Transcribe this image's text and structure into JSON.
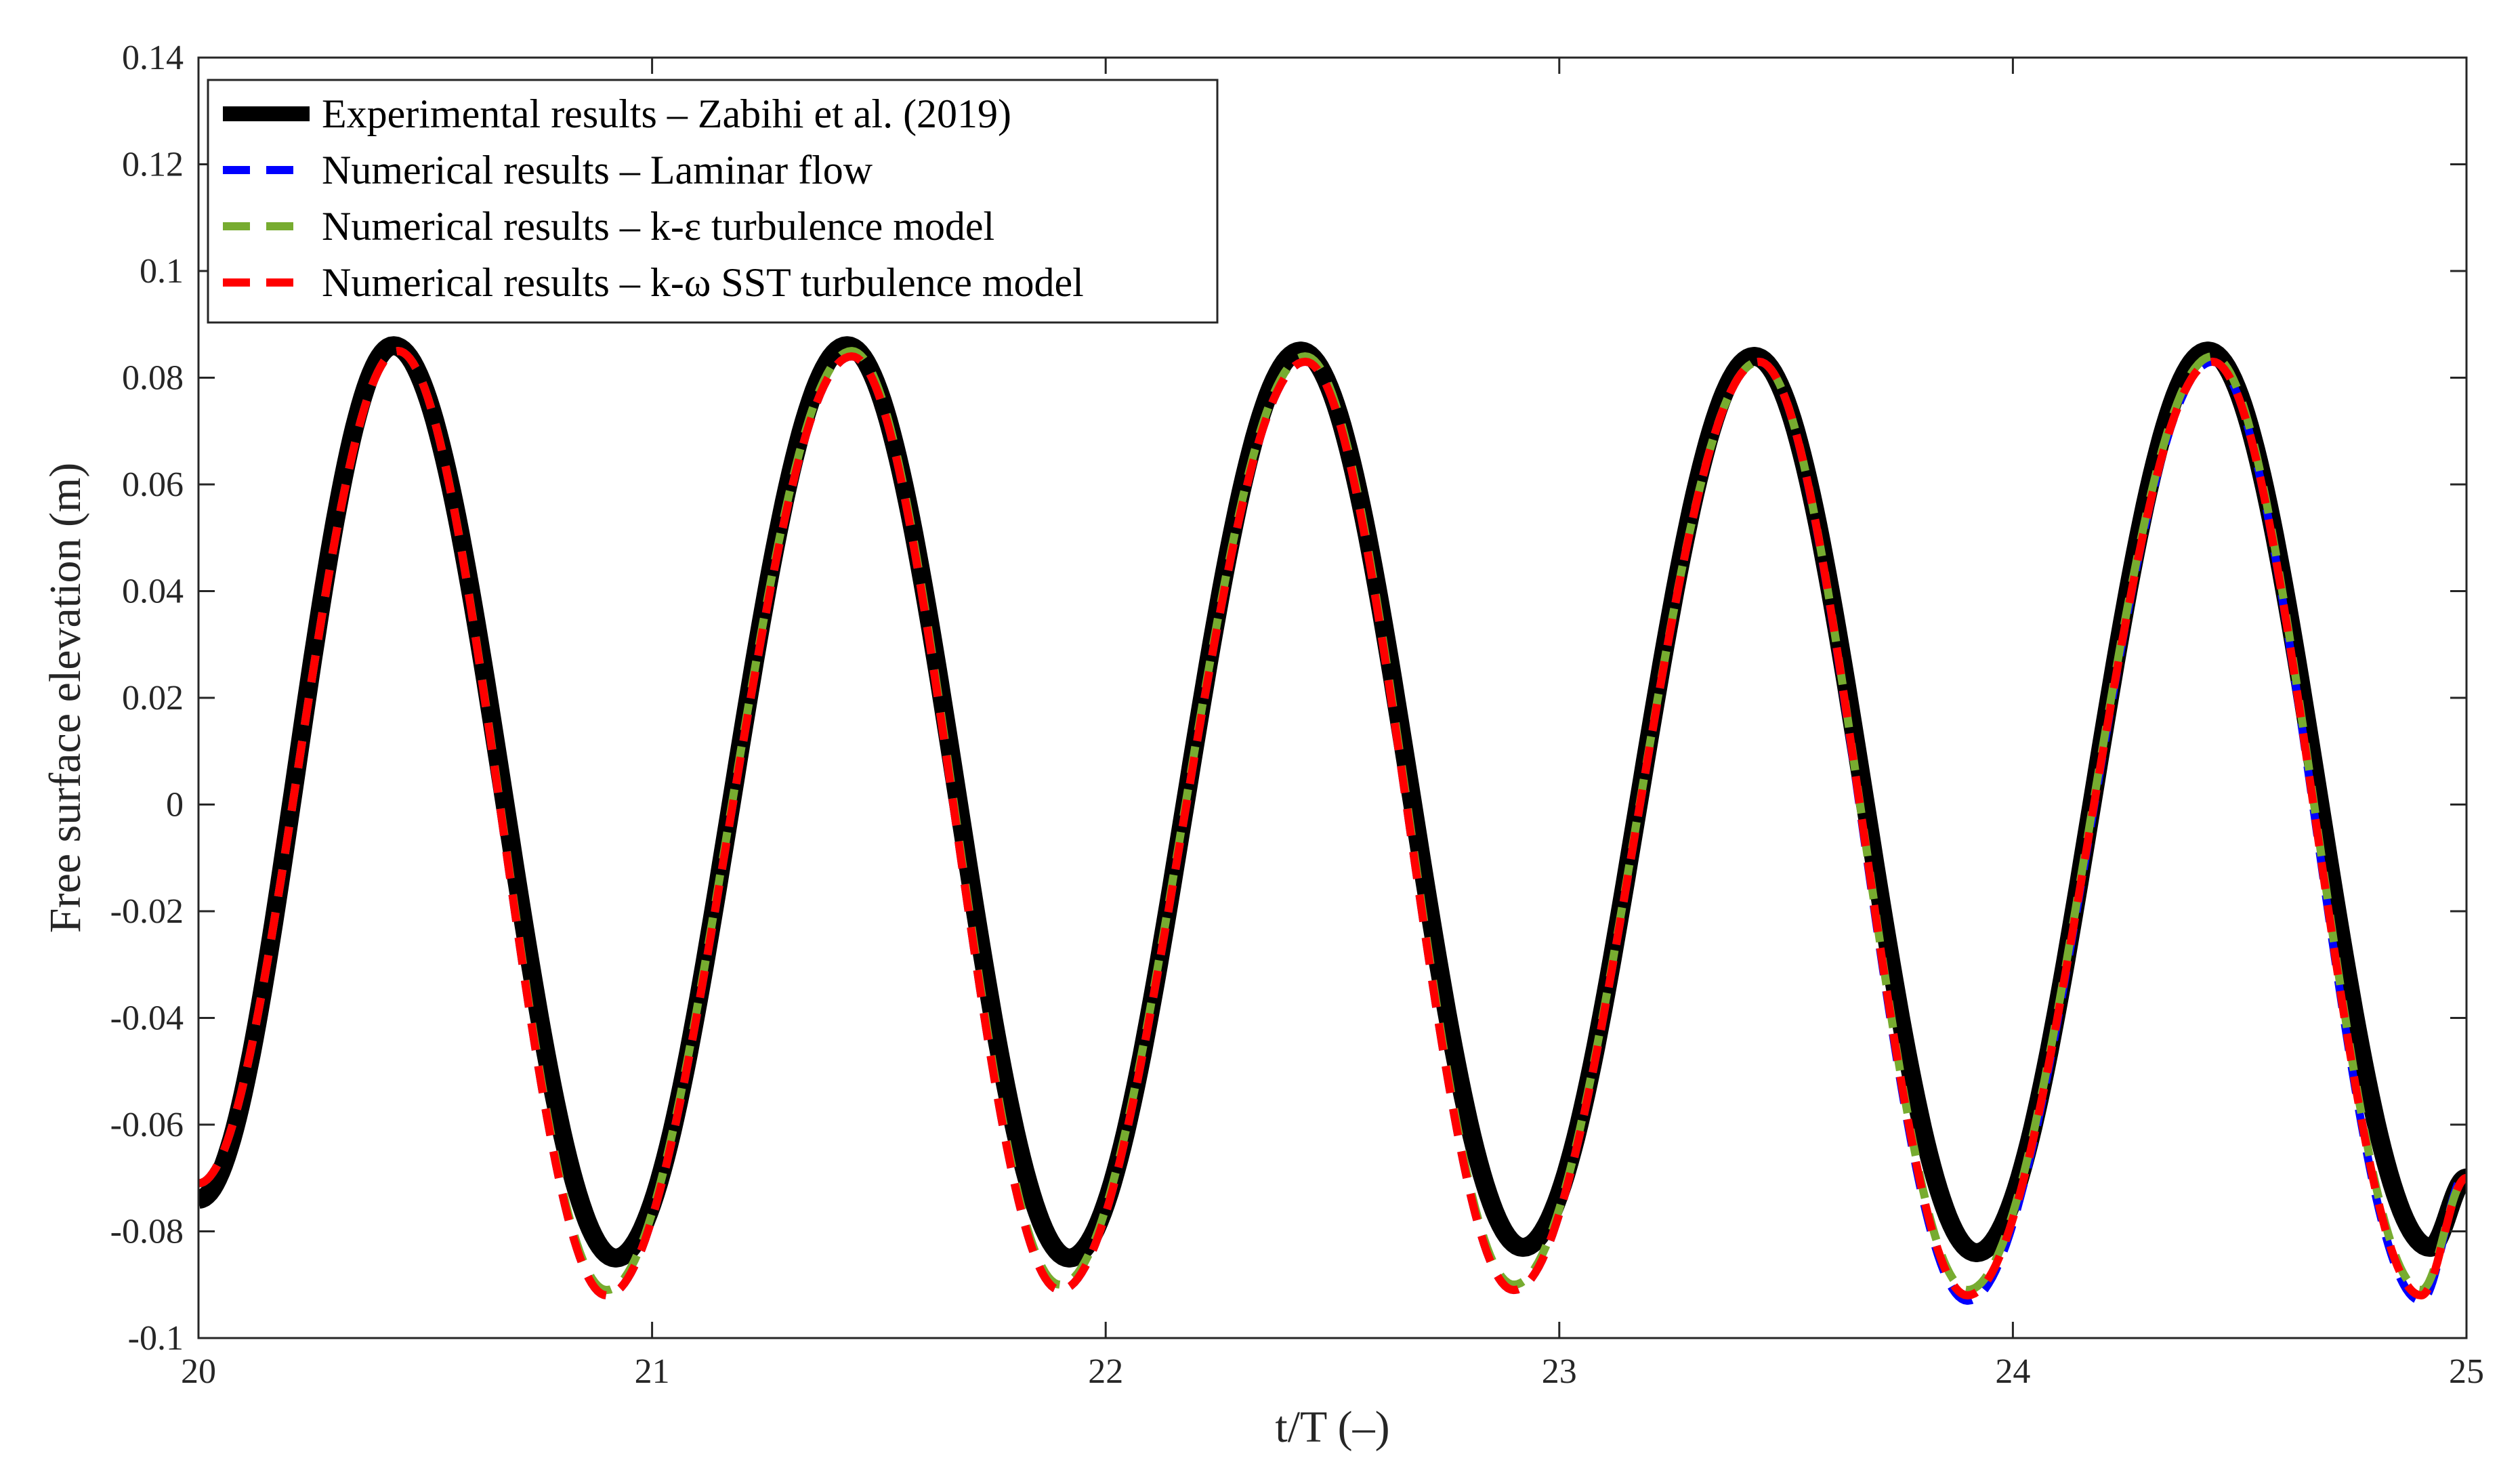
{
  "chart_data": {
    "type": "line",
    "xlabel": "t/T (–)",
    "ylabel": "Free surface elevation (m)",
    "xlim": [
      20,
      25
    ],
    "ylim": [
      -0.1,
      0.14
    ],
    "xticks": [
      20,
      21,
      22,
      23,
      24,
      25
    ],
    "xtick_labels": [
      "20",
      "21",
      "22",
      "23",
      "24",
      "25"
    ],
    "yticks": [
      -0.1,
      -0.08,
      -0.06,
      -0.04,
      -0.02,
      0,
      0.02,
      0.04,
      0.06,
      0.08,
      0.1,
      0.12,
      0.14
    ],
    "ytick_labels": [
      "-0.1",
      "-0.08",
      "-0.06",
      "-0.04",
      "-0.02",
      "0",
      "0.02",
      "0.04",
      "0.06",
      "0.08",
      "0.1",
      "0.12",
      "0.14"
    ],
    "grid": false,
    "legend_position": "top-left",
    "series": [
      {
        "name": "Experimental results – Zabihi et al. (2019)",
        "color": "#000000",
        "style": "solid",
        "x": [
          20.0,
          20.43,
          20.92,
          21.43,
          21.92,
          22.43,
          22.92,
          23.43,
          23.92,
          24.43,
          24.92,
          25.0
        ],
        "y": [
          -0.074,
          0.086,
          -0.085,
          0.086,
          -0.085,
          0.085,
          -0.083,
          0.084,
          -0.084,
          0.085,
          -0.083,
          -0.07
        ]
      },
      {
        "name": "Numerical results – Laminar flow",
        "color": "#0000ff",
        "style": "dashed",
        "x": [
          20.0,
          20.44,
          20.9,
          21.44,
          21.9,
          22.44,
          22.9,
          23.44,
          23.9,
          24.44,
          24.9,
          25.0
        ],
        "y": [
          -0.071,
          0.085,
          -0.092,
          0.084,
          -0.091,
          0.083,
          -0.091,
          0.083,
          -0.093,
          0.083,
          -0.093,
          -0.069
        ]
      },
      {
        "name": "Numerical results – k-ε turbulence model",
        "color": "#77ac30",
        "style": "dashed",
        "x": [
          20.0,
          20.44,
          20.9,
          21.44,
          21.9,
          22.44,
          22.9,
          23.44,
          23.9,
          24.44,
          24.9,
          25.0
        ],
        "y": [
          -0.071,
          0.085,
          -0.091,
          0.085,
          -0.09,
          0.084,
          -0.09,
          0.083,
          -0.091,
          0.084,
          -0.091,
          -0.07
        ]
      },
      {
        "name": "Numerical results – k-ω SST turbulence model",
        "color": "#ff0000",
        "style": "dashed",
        "x": [
          20.0,
          20.44,
          20.9,
          21.44,
          21.9,
          22.44,
          22.9,
          23.44,
          23.9,
          24.44,
          24.9,
          25.0
        ],
        "y": [
          -0.071,
          0.085,
          -0.092,
          0.084,
          -0.091,
          0.083,
          -0.091,
          0.083,
          -0.092,
          0.083,
          -0.092,
          -0.07
        ]
      }
    ]
  }
}
